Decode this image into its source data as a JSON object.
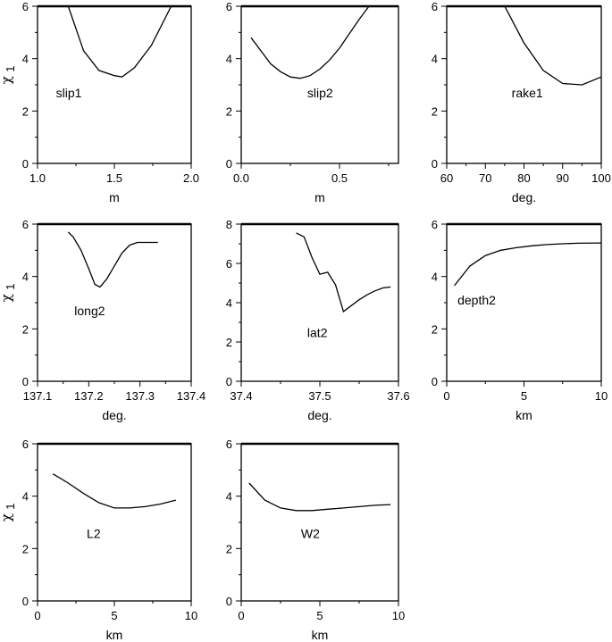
{
  "figure": {
    "ylabel_text": "χ",
    "ylabel_sub": "1"
  },
  "chart_data": [
    {
      "type": "line",
      "label": "slip1",
      "xlabel": "m",
      "xlim": [
        1.0,
        2.0
      ],
      "ylim": [
        0,
        6
      ],
      "xticks": [
        "1.0",
        "1.5",
        "2.0"
      ],
      "yticks": [
        "0",
        "2",
        "4",
        "6"
      ],
      "x": [
        1.2,
        1.3,
        1.4,
        1.5,
        1.55,
        1.63,
        1.74,
        1.87
      ],
      "y": [
        6.0,
        4.3,
        3.55,
        3.35,
        3.3,
        3.65,
        4.5,
        6.0
      ]
    },
    {
      "type": "line",
      "label": "slip2",
      "xlabel": "m",
      "xlim": [
        0.0,
        0.8
      ],
      "ylim": [
        0,
        6
      ],
      "xticks": [
        "0.0",
        "0.5"
      ],
      "yticks": [
        "0",
        "2",
        "4",
        "6"
      ],
      "x": [
        0.05,
        0.1,
        0.15,
        0.2,
        0.25,
        0.3,
        0.35,
        0.4,
        0.45,
        0.5,
        0.55,
        0.6,
        0.65
      ],
      "y": [
        4.8,
        4.3,
        3.8,
        3.5,
        3.3,
        3.25,
        3.35,
        3.6,
        3.95,
        4.4,
        4.95,
        5.5,
        6.0
      ]
    },
    {
      "type": "line",
      "label": "rake1",
      "xlabel": "deg.",
      "xlim": [
        60,
        100
      ],
      "ylim": [
        0,
        6
      ],
      "xticks": [
        "60",
        "70",
        "80",
        "90",
        "100"
      ],
      "yticks": [
        "0",
        "2",
        "4",
        "6"
      ],
      "x": [
        75,
        80,
        85,
        90,
        95,
        100
      ],
      "y": [
        6.0,
        4.6,
        3.55,
        3.05,
        3.0,
        3.3
      ]
    },
    {
      "type": "line",
      "label": "long2",
      "xlabel": "deg.",
      "xlim": [
        137.1,
        137.4
      ],
      "ylim": [
        0,
        6
      ],
      "xticks": [
        "137.1",
        "137.2",
        "137.3",
        "137.4"
      ],
      "yticks": [
        "0",
        "2",
        "4",
        "6"
      ],
      "x": [
        137.16,
        137.17,
        137.185,
        137.2,
        137.212,
        137.222,
        137.235,
        137.25,
        137.265,
        137.28,
        137.295,
        137.31,
        137.32,
        137.335
      ],
      "y": [
        5.7,
        5.5,
        5.0,
        4.3,
        3.7,
        3.6,
        3.9,
        4.4,
        4.9,
        5.2,
        5.3,
        5.3,
        5.3,
        5.3
      ]
    },
    {
      "type": "line",
      "label": "lat2",
      "xlabel": "deg.",
      "xlim": [
        37.4,
        37.6
      ],
      "ylim": [
        0,
        8
      ],
      "xticks": [
        "37.4",
        "37.5",
        "37.6"
      ],
      "yticks": [
        "0",
        "2",
        "4",
        "6",
        "8"
      ],
      "x": [
        37.47,
        37.48,
        37.49,
        37.5,
        37.51,
        37.52,
        37.53,
        37.54,
        37.55,
        37.56,
        37.57,
        37.58,
        37.59
      ],
      "y": [
        7.55,
        7.35,
        6.3,
        5.45,
        5.55,
        4.9,
        3.55,
        3.85,
        4.15,
        4.4,
        4.6,
        4.75,
        4.8
      ]
    },
    {
      "type": "line",
      "label": "depth2",
      "xlabel": "km",
      "xlim": [
        0,
        10
      ],
      "ylim": [
        0,
        6
      ],
      "xticks": [
        "0",
        "5",
        "10"
      ],
      "yticks": [
        "0",
        "2",
        "4",
        "6"
      ],
      "x": [
        0.5,
        1.5,
        2.5,
        3.5,
        4.5,
        5.5,
        6.5,
        7.5,
        8.5,
        10
      ],
      "y": [
        3.65,
        4.4,
        4.8,
        5.0,
        5.1,
        5.17,
        5.22,
        5.25,
        5.27,
        5.28
      ]
    },
    {
      "type": "line",
      "label": "L2",
      "xlabel": "km",
      "xlim": [
        0,
        10
      ],
      "ylim": [
        0,
        6
      ],
      "xticks": [
        "0",
        "5",
        "10"
      ],
      "yticks": [
        "0",
        "2",
        "4",
        "6"
      ],
      "x": [
        1,
        2,
        3,
        4,
        5,
        6,
        7,
        8,
        9
      ],
      "y": [
        4.85,
        4.5,
        4.1,
        3.75,
        3.55,
        3.55,
        3.6,
        3.7,
        3.85
      ]
    },
    {
      "type": "line",
      "label": "W2",
      "xlabel": "km",
      "xlim": [
        0,
        10
      ],
      "ylim": [
        0,
        6
      ],
      "xticks": [
        "0",
        "5",
        "10"
      ],
      "yticks": [
        "0",
        "2",
        "4",
        "6"
      ],
      "x": [
        0.5,
        1.5,
        2.5,
        3.5,
        4.5,
        5.5,
        6.5,
        7.5,
        8.5,
        9.5
      ],
      "y": [
        4.5,
        3.85,
        3.55,
        3.45,
        3.45,
        3.5,
        3.55,
        3.6,
        3.65,
        3.68
      ]
    }
  ]
}
